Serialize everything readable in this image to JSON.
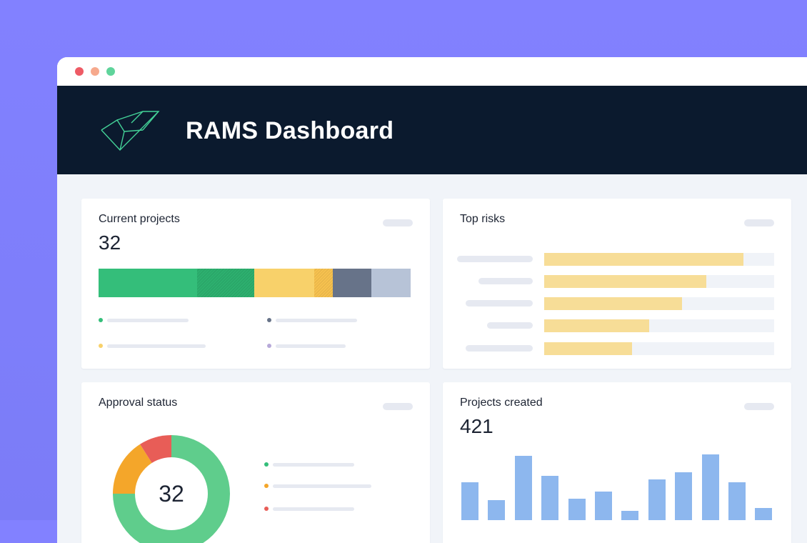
{
  "window": {
    "controls": [
      "close",
      "minimize",
      "maximize"
    ]
  },
  "header": {
    "title": "RAMS Dashboard",
    "logo_icon": "check-triangle-logo"
  },
  "current_projects": {
    "title": "Current projects",
    "value": "32",
    "segments": [
      {
        "color": "#34be7a",
        "fraction": 0.315,
        "pattern": "solid"
      },
      {
        "color": "#2db06f",
        "fraction": 0.185,
        "pattern": "hatched"
      },
      {
        "color": "#f8d16a",
        "fraction": 0.19,
        "pattern": "solid"
      },
      {
        "color": "#f6c14f",
        "fraction": 0.06,
        "pattern": "hatched"
      },
      {
        "color": "#677389",
        "fraction": 0.125,
        "pattern": "solid"
      },
      {
        "color": "#b7c3d7",
        "fraction": 0.125,
        "pattern": "solid"
      }
    ],
    "legend_colors": [
      "#34be7a",
      "#677389",
      "#f8d16a",
      "#b7a9d9"
    ]
  },
  "top_risks": {
    "title": "Top risks",
    "bars": [
      0.865,
      0.705,
      0.6,
      0.458,
      0.382
    ],
    "bar_color": "#f7dd97"
  },
  "approval_status": {
    "title": "Approval status",
    "center_value": "32",
    "slices": [
      {
        "color": "#5fcd8c",
        "fraction": 0.75
      },
      {
        "color": "#f4a62a",
        "fraction": 0.16
      },
      {
        "color": "#e85d57",
        "fraction": 0.09
      }
    ],
    "legend_colors": [
      "#34be7a",
      "#f4a62a",
      "#e85d57"
    ]
  },
  "projects_created": {
    "title": "Projects created",
    "value": "421",
    "chart_data": {
      "type": "bar",
      "values": [
        53,
        28,
        90,
        62,
        30,
        40,
        13,
        57,
        67,
        92,
        53,
        17
      ],
      "color": "#8db7ee"
    }
  }
}
